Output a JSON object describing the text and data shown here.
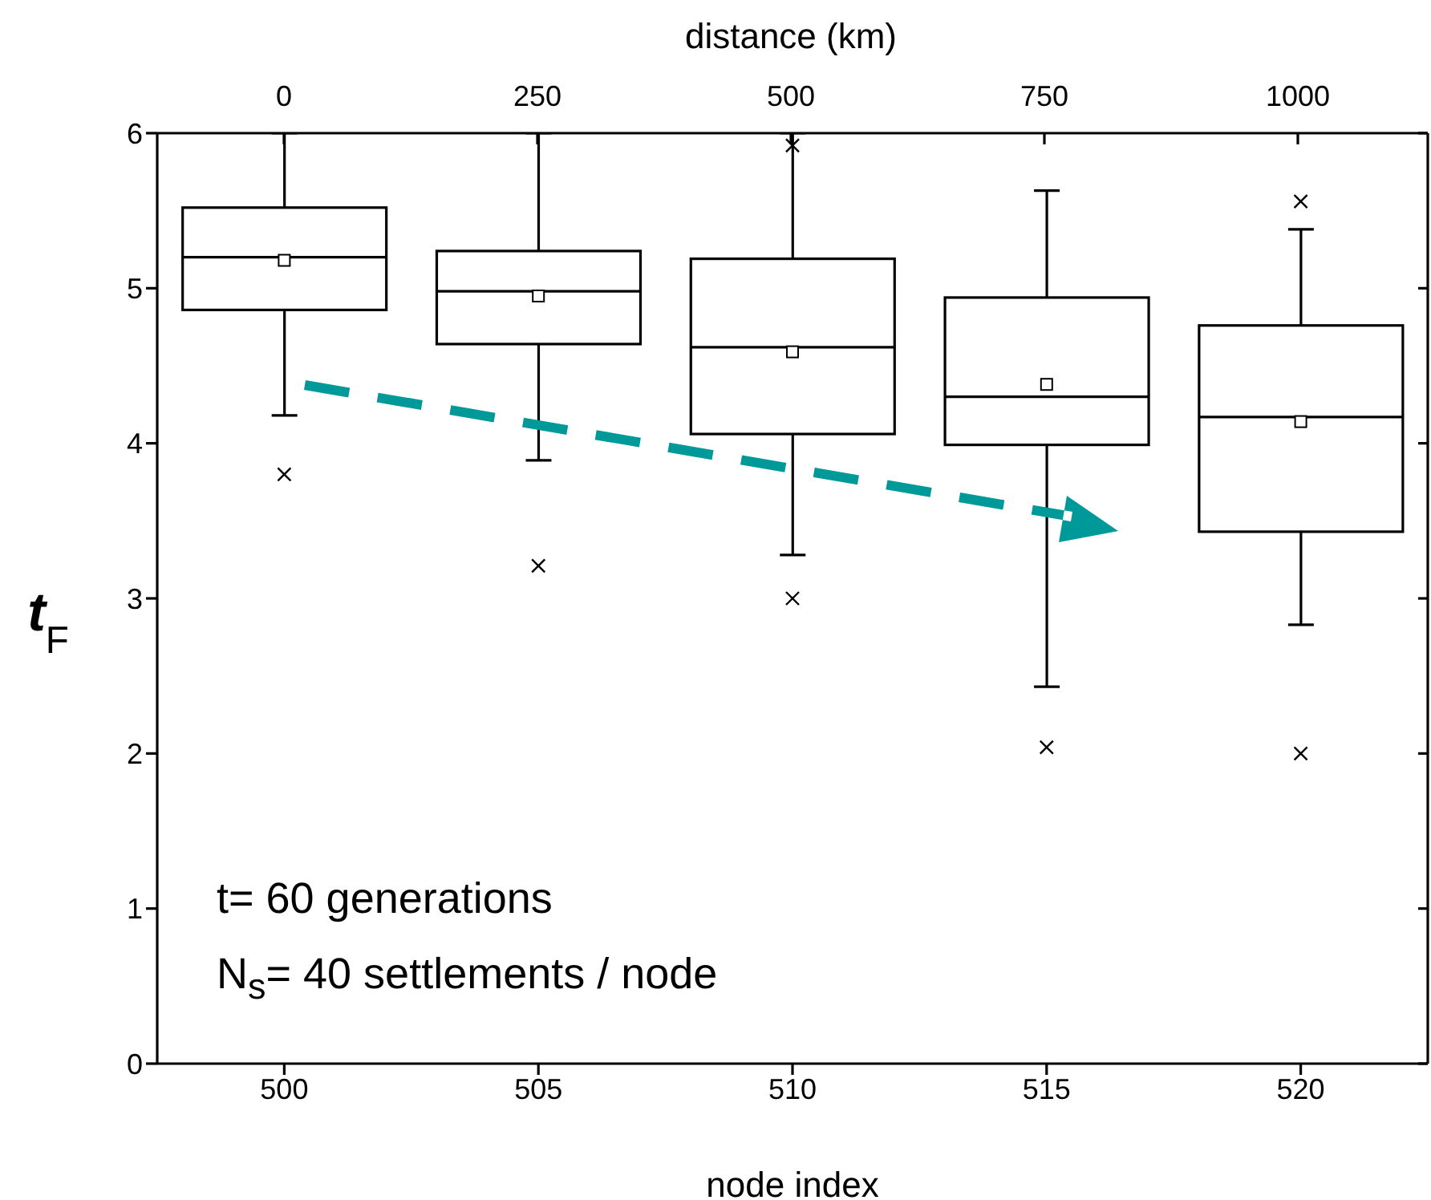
{
  "chart_data": {
    "type": "box",
    "xlabel": "node index",
    "x2label": "distance (km)",
    "ylabel": "t$_{F}$",
    "categories": [
      "500",
      "505",
      "510",
      "515",
      "520"
    ],
    "boxes": [
      {
        "low": 4.18,
        "q1": 4.86,
        "median": 5.2,
        "q3": 5.52,
        "high": 6,
        "mean": 5.18,
        "outliers": [
          3.8
        ]
      },
      {
        "low": 3.89,
        "q1": 4.64,
        "median": 4.98,
        "q3": 5.24,
        "high": 6,
        "mean": 4.95,
        "outliers": [
          3.21
        ]
      },
      {
        "low": 3.28,
        "q1": 4.06,
        "median": 4.62,
        "q3": 5.19,
        "high": 6,
        "mean": 4.59,
        "outliers": [
          5.92,
          3.0
        ]
      },
      {
        "low": 2.43,
        "q1": 3.99,
        "median": 4.3,
        "q3": 4.94,
        "high": 5.63,
        "mean": 4.38,
        "outliers": [
          2.04
        ]
      },
      {
        "low": 2.83,
        "q1": 3.43,
        "median": 4.17,
        "q3": 4.76,
        "high": 5.38,
        "mean": 4.14,
        "outliers": [
          5.56,
          2.0
        ]
      }
    ],
    "ylim": [
      0,
      6
    ],
    "yticks": [
      0,
      1,
      2,
      3,
      4,
      5,
      6
    ],
    "x2lim": [
      -125,
      1125
    ],
    "x2ticks": [
      0,
      250,
      500,
      750,
      1000
    ],
    "annotations": [
      "t= 60 generations",
      "N$_{s}$= 40 settlements / node"
    ]
  }
}
